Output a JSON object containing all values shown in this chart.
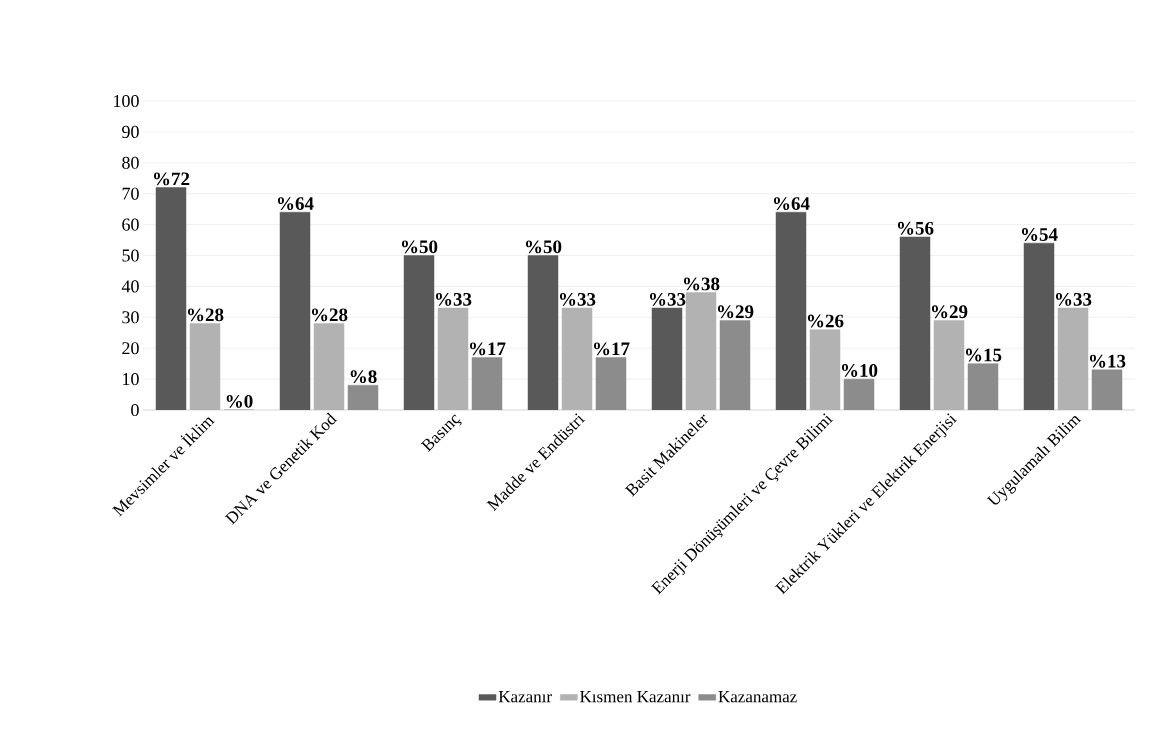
{
  "chart_data": {
    "type": "bar",
    "categories": [
      "Mevsimler ve İklim",
      "DNA ve Genetik Kod",
      "Basınç",
      "Madde ve Endüstri",
      "Basit Makineler",
      "Enerji Dönüşümleri ve Çevre Bilimi",
      "Elektrik Yükleri ve Elektrik Enerjisi",
      "Uygulamalı Bilim"
    ],
    "series": [
      {
        "name": "Kazanır",
        "color": "#595959",
        "values": [
          72,
          64,
          50,
          50,
          33,
          64,
          56,
          54
        ],
        "value_labels": [
          "%72",
          "%64",
          "%50",
          "%50",
          "%33",
          "%64",
          "%56",
          "%54"
        ]
      },
      {
        "name": "Kısmen Kazanır",
        "color": "#b2b2b2",
        "values": [
          28,
          28,
          33,
          33,
          38,
          26,
          29,
          33
        ],
        "value_labels": [
          "%28",
          "%28",
          "%33",
          "%33",
          "%38",
          "%26",
          "%29",
          "%33"
        ]
      },
      {
        "name": "Kazanamaz",
        "color": "#8c8c8c",
        "values": [
          0,
          8,
          17,
          17,
          29,
          10,
          15,
          13
        ],
        "value_labels": [
          "%0",
          "%8",
          "%17",
          "%17",
          "%29",
          "%10",
          "%15",
          "%13"
        ]
      }
    ],
    "ylim": [
      0,
      100
    ],
    "yticks": [
      0,
      10,
      20,
      30,
      40,
      50,
      60,
      70,
      80,
      90,
      100
    ],
    "grid": "y",
    "legend": "bottom"
  }
}
